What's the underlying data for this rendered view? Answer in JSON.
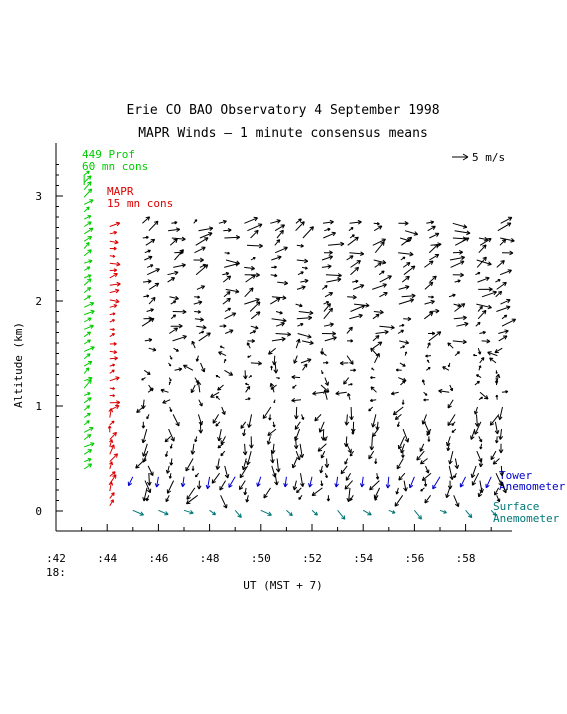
{
  "chart_data": {
    "type": "vector-field",
    "title_line1": "Erie CO   BAO Observatory   4 September 1998",
    "title_line2": "MAPR Winds   —   1 minute consensus means",
    "xlabel": "UT (MST + 7)",
    "ylabel": "Altitude (km)",
    "x_ticks": [
      ":42",
      ":44",
      ":46",
      ":48",
      ":50",
      ":52",
      ":54",
      ":56",
      ":58"
    ],
    "x_hour_label": "18:",
    "y_ticks": [
      "0",
      "1",
      "2",
      "3"
    ],
    "xlim": [
      42,
      60
    ],
    "ylim": [
      -0.2,
      3.5
    ],
    "scale_label": "5 m/s",
    "scale_ms": 5,
    "series": [
      {
        "name": "449 Prof",
        "name2": "60 mn cons",
        "color": "#00cc00",
        "minute": 43.1,
        "alt_range": [
          0.4,
          3.2
        ],
        "alt_step": 0.07
      },
      {
        "name": "MAPR",
        "name2": "15 mn cons",
        "color": "#dd0000",
        "minute": 44.1,
        "alt_range": [
          0.05,
          2.75
        ],
        "alt_step": 0.07
      },
      {
        "name": "",
        "color": "#000000",
        "minutes": [
          45.5,
          46.5,
          47.5,
          48.5,
          49.5,
          50.5,
          51.5,
          52.5,
          53.5,
          54.5,
          55.5,
          56.5,
          57.5,
          58.5,
          59.3
        ],
        "alt_range": [
          0.15,
          2.75
        ],
        "alt_step": 0.07
      },
      {
        "name": "Tower",
        "name2": "Anemometer",
        "color": "#0000cc",
        "alt": 0.25
      },
      {
        "name": "Surface",
        "name2": "Anemometer",
        "color": "#007777",
        "alt": -0.05
      }
    ]
  }
}
